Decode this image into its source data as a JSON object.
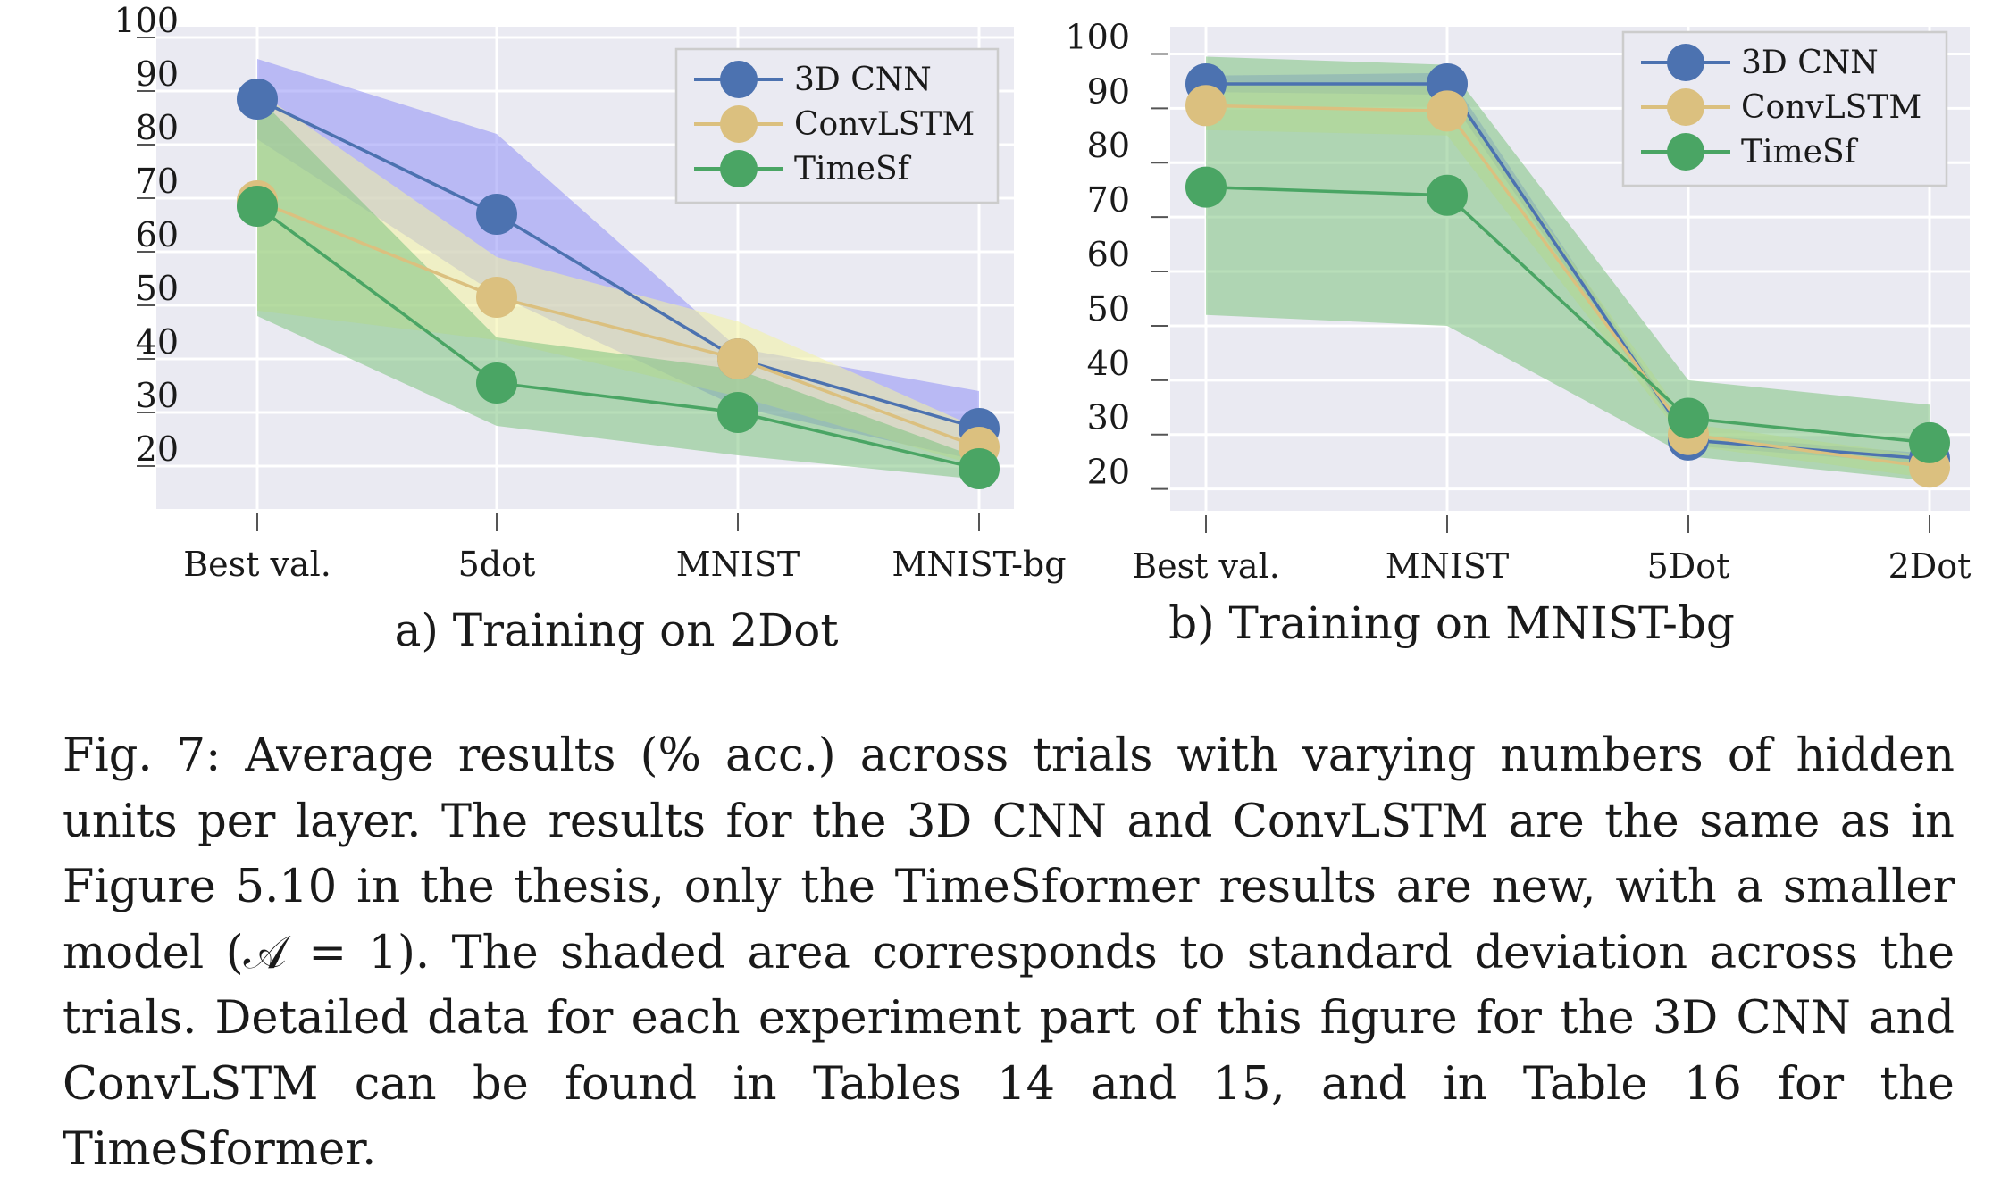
{
  "chart_data": [
    {
      "type": "line",
      "title": "a) Training on 2Dot",
      "xlabel": "",
      "ylabel": "",
      "categories": [
        "Best val.",
        "5dot",
        "MNIST",
        "MNIST-bg"
      ],
      "yticks": [
        20,
        30,
        40,
        50,
        60,
        70,
        80,
        90,
        100
      ],
      "ylim": [
        12,
        102
      ],
      "grid": true,
      "legend_position": "top-right",
      "series": [
        {
          "name": "3D CNN",
          "color": "#4c72b0",
          "band_color": "#8f8ff5",
          "values": [
            88.5,
            67,
            40,
            27
          ],
          "lower": [
            81,
            52,
            31,
            21
          ],
          "upper": [
            96,
            82,
            42,
            34
          ]
        },
        {
          "name": "ConvLSTM",
          "color": "#dbc07f",
          "band_color": "#f2f2a0",
          "values": [
            69.5,
            51.5,
            40,
            23.5
          ],
          "lower": [
            49,
            43.5,
            33,
            20
          ],
          "upper": [
            90,
            59,
            47,
            27
          ]
        },
        {
          "name": "TimeSf",
          "color": "#4aa564",
          "band_color": "#7ec27f",
          "values": [
            68.5,
            35.5,
            30,
            19.5
          ],
          "lower": [
            48,
            27.5,
            22,
            17.5
          ],
          "upper": [
            89,
            44,
            38,
            21.5
          ]
        }
      ]
    },
    {
      "type": "line",
      "title": "b) Training on MNIST-bg",
      "xlabel": "",
      "ylabel": "",
      "categories": [
        "Best val.",
        "MNIST",
        "5Dot",
        "2Dot"
      ],
      "yticks": [
        20,
        30,
        40,
        50,
        60,
        70,
        80,
        90,
        100
      ],
      "ylim": [
        16,
        105
      ],
      "grid": true,
      "legend_position": "top-right",
      "series": [
        {
          "name": "3D CNN",
          "color": "#4c72b0",
          "band_color": "#8f8ff5",
          "values": [
            94.5,
            94.5,
            29,
            25.5
          ],
          "lower": [
            93,
            92.5,
            28,
            24.5
          ],
          "upper": [
            96,
            96.5,
            30,
            26.5
          ]
        },
        {
          "name": "ConvLSTM",
          "color": "#dbc07f",
          "band_color": "#f2f2a0",
          "values": [
            90.5,
            89.5,
            30,
            24
          ],
          "lower": [
            86,
            85,
            28,
            22
          ],
          "upper": [
            95,
            94,
            32,
            26
          ]
        },
        {
          "name": "TimeSf",
          "color": "#4aa564",
          "band_color": "#7ec27f",
          "values": [
            75.5,
            74,
            33,
            28.5
          ],
          "lower": [
            52,
            50,
            26,
            21.5
          ],
          "upper": [
            99.5,
            98,
            40,
            35.5
          ]
        }
      ]
    }
  ],
  "caption": "Fig. 7: Average results (% acc.) across trials with varying numbers of hidden units per layer. The results for the 3D CNN and ConvLSTM are the same as in Figure 5.10 in the thesis, only the TimeSformer results are new, with a smaller model (𝒜 = 1). The shaded area corresponds to standard deviation across the trials. Detailed data for each experiment part of this figure for the 3D CNN and ConvLSTM can be found in Tables 14 and 15, and in Table 16 for the TimeSformer."
}
